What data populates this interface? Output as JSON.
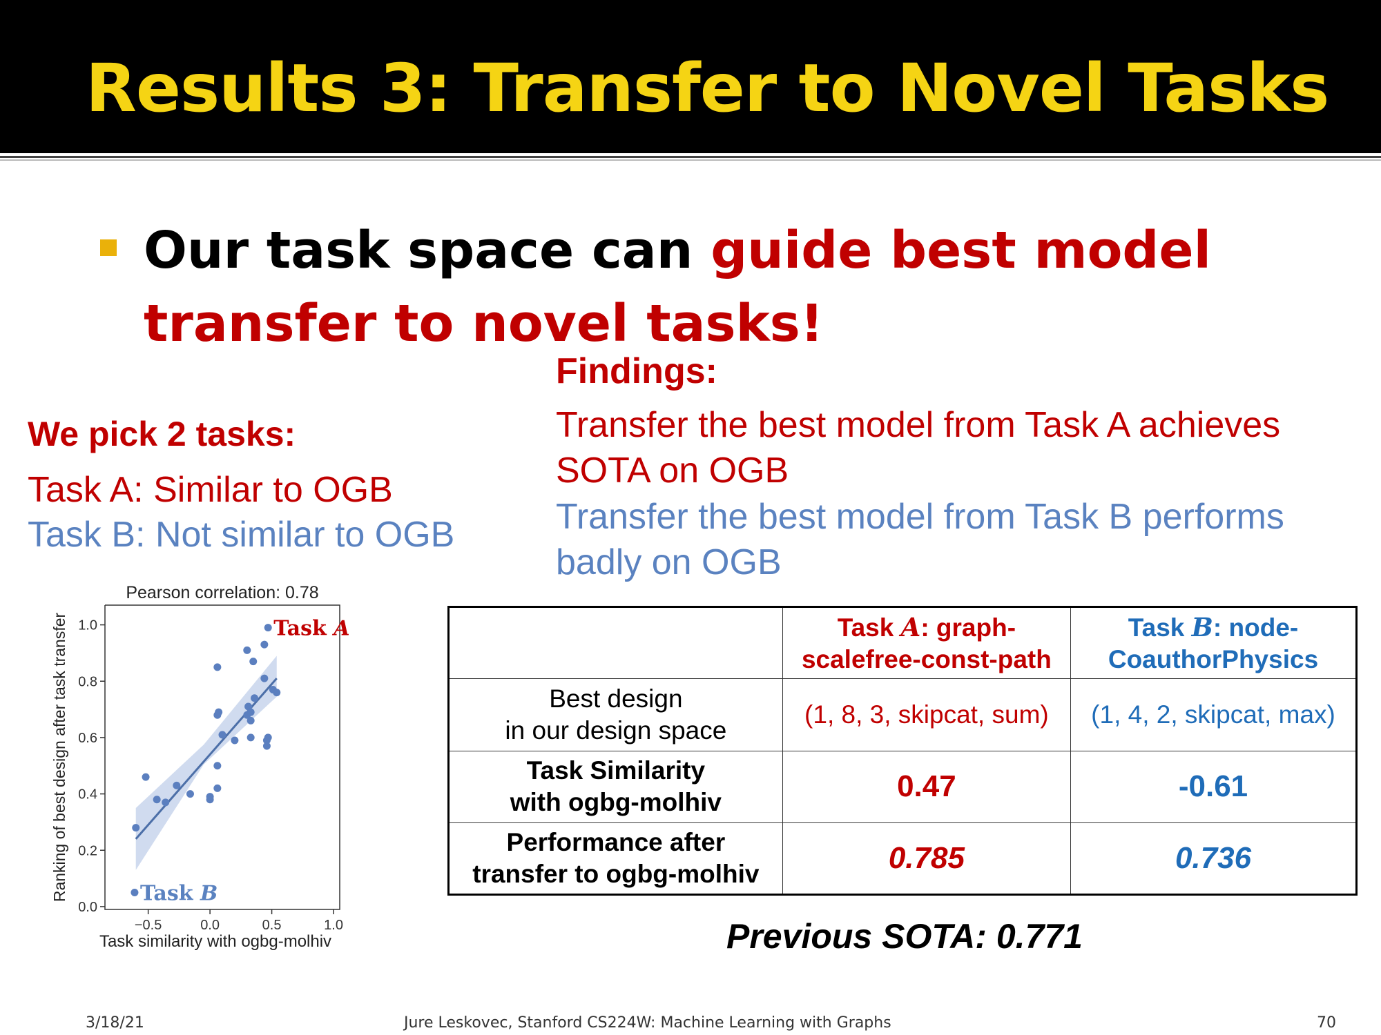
{
  "slide": {
    "title": "Results 3: Transfer to Novel Tasks",
    "bullet_text_black": "Our task space can ",
    "bullet_text_red": "guide best model transfer to novel tasks!"
  },
  "findings": {
    "heading": "Findings:",
    "line_a": "Transfer the best model from Task A achieves SOTA on OGB",
    "line_b": "Transfer the best model from Task B performs badly on OGB"
  },
  "pick": {
    "heading": "We pick 2 tasks:",
    "task_a": "Task A: Similar to OGB",
    "task_b": "Task B: Not similar to OGB"
  },
  "chart_data": {
    "type": "scatter",
    "title": "Pearson correlation: 0.78",
    "xlabel": "Task similarity with ogbg-molhiv",
    "ylabel": "Ranking of best design after task transfer",
    "xlim": [
      -0.85,
      1.05
    ],
    "ylim": [
      -0.01,
      1.07
    ],
    "xticks": [
      -0.5,
      0.0,
      0.5,
      1.0
    ],
    "xtick_labels": [
      "−0.5",
      "0.0",
      "0.5",
      "1.0"
    ],
    "yticks": [
      0.0,
      0.2,
      0.4,
      0.6,
      0.8,
      1.0
    ],
    "ytick_labels": [
      "0.0",
      "0.2",
      "0.4",
      "0.6",
      "0.8",
      "1.0"
    ],
    "points": [
      {
        "x": -0.61,
        "y": 0.05
      },
      {
        "x": -0.6,
        "y": 0.28
      },
      {
        "x": -0.52,
        "y": 0.46
      },
      {
        "x": -0.43,
        "y": 0.38
      },
      {
        "x": -0.36,
        "y": 0.37
      },
      {
        "x": -0.27,
        "y": 0.43
      },
      {
        "x": -0.16,
        "y": 0.4
      },
      {
        "x": 0.0,
        "y": 0.39
      },
      {
        "x": 0.0,
        "y": 0.38
      },
      {
        "x": 0.06,
        "y": 0.42
      },
      {
        "x": 0.06,
        "y": 0.5
      },
      {
        "x": 0.06,
        "y": 0.68
      },
      {
        "x": 0.07,
        "y": 0.69
      },
      {
        "x": 0.06,
        "y": 0.85
      },
      {
        "x": 0.1,
        "y": 0.61
      },
      {
        "x": 0.2,
        "y": 0.59
      },
      {
        "x": 0.3,
        "y": 0.68
      },
      {
        "x": 0.31,
        "y": 0.71
      },
      {
        "x": 0.33,
        "y": 0.69
      },
      {
        "x": 0.3,
        "y": 0.91
      },
      {
        "x": 0.35,
        "y": 0.87
      },
      {
        "x": 0.36,
        "y": 0.74
      },
      {
        "x": 0.33,
        "y": 0.6
      },
      {
        "x": 0.33,
        "y": 0.66
      },
      {
        "x": 0.44,
        "y": 0.93
      },
      {
        "x": 0.47,
        "y": 0.99
      },
      {
        "x": 0.44,
        "y": 0.81
      },
      {
        "x": 0.46,
        "y": 0.59
      },
      {
        "x": 0.47,
        "y": 0.6
      },
      {
        "x": 0.46,
        "y": 0.57
      },
      {
        "x": 0.51,
        "y": 0.77
      },
      {
        "x": 0.54,
        "y": 0.76
      }
    ],
    "fit_line": {
      "x": [
        -0.6,
        0.54
      ],
      "y": [
        0.24,
        0.81
      ]
    },
    "annotations": [
      {
        "text": "Task A",
        "prefix": "Task ",
        "var": "A",
        "x": 0.47,
        "y": 0.99,
        "color": "#c00000"
      },
      {
        "text": "Task B",
        "prefix": "Task ",
        "var": "B",
        "x": -0.61,
        "y": 0.05,
        "color": "#5a82c0"
      }
    ],
    "colors": {
      "points": "#5b7fbf",
      "line": "#4c6fa8",
      "band": "#c8d5ec"
    }
  },
  "table": {
    "header_a_prefix": "Task ",
    "header_a_var": "A",
    "header_a_rest": ": graph-",
    "header_a_line2": "scalefree-const-path",
    "header_b_prefix": "Task ",
    "header_b_var": "B",
    "header_b_rest": ": node-",
    "header_b_line2": "CoauthorPhysics",
    "rows": [
      {
        "label_line1": "Best design",
        "label_line2": "in our design space",
        "a": "(1, 8, 3, skipcat, sum)",
        "b": "(1, 4, 2, skipcat, max)"
      },
      {
        "label_line1": "Task Similarity",
        "label_line2": "with ogbg-molhiv",
        "a": "0.47",
        "b": "-0.61"
      },
      {
        "label_line1": "Performance after",
        "label_line2": "transfer to ogbg-molhiv",
        "a": "0.785",
        "b": "0.736"
      }
    ]
  },
  "sota": "Previous SOTA: 0.771",
  "footer": {
    "date": "3/18/21",
    "center": "Jure Leskovec, Stanford CS224W: Machine Learning with Graphs",
    "page": "70"
  },
  "colors": {
    "title_yellow": "#f5d414",
    "accent_red": "#c00000",
    "accent_blue": "#5a82c0",
    "table_blue": "#1f6cb8",
    "bullet": "#eab10a"
  }
}
